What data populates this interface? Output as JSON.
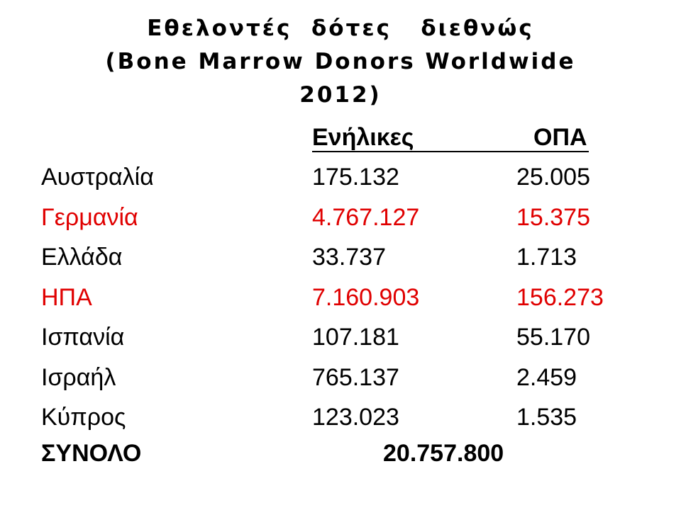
{
  "slide": {
    "title_lines": [
      "Εθελοντές  δότες   διεθνώς",
      "(Bone Marrow Donors Worldwide",
      "2012)"
    ],
    "table": {
      "headers": [
        "Ενήλικες",
        "ΟΠΑ"
      ],
      "rows": [
        {
          "country": "Αυστραλία",
          "adults": "175.132",
          "opa": "25.005",
          "color": "#000000"
        },
        {
          "country": "Γερμανία",
          "adults": "4.767.127",
          "opa": "15.375",
          "color": "#e00000"
        },
        {
          "country": "Ελλάδα",
          "adults": "33.737",
          "opa": "1.713",
          "color": "#000000"
        },
        {
          "country": "ΗΠΑ",
          "adults": "7.160.903",
          "opa": "156.273",
          "color": "#e00000"
        },
        {
          "country": "Ισπανία",
          "adults": "107.181",
          "opa": "55.170",
          "color": "#000000"
        },
        {
          "country": "Ισραήλ",
          "adults": "765.137",
          "opa": "2.459",
          "color": "#000000"
        },
        {
          "country": "Κύπρος",
          "adults": "123.023",
          "opa": "1.535",
          "color": "#000000"
        }
      ],
      "total_label": "ΣΥΝΟΛΟ",
      "total_value": "20.757.800"
    }
  }
}
